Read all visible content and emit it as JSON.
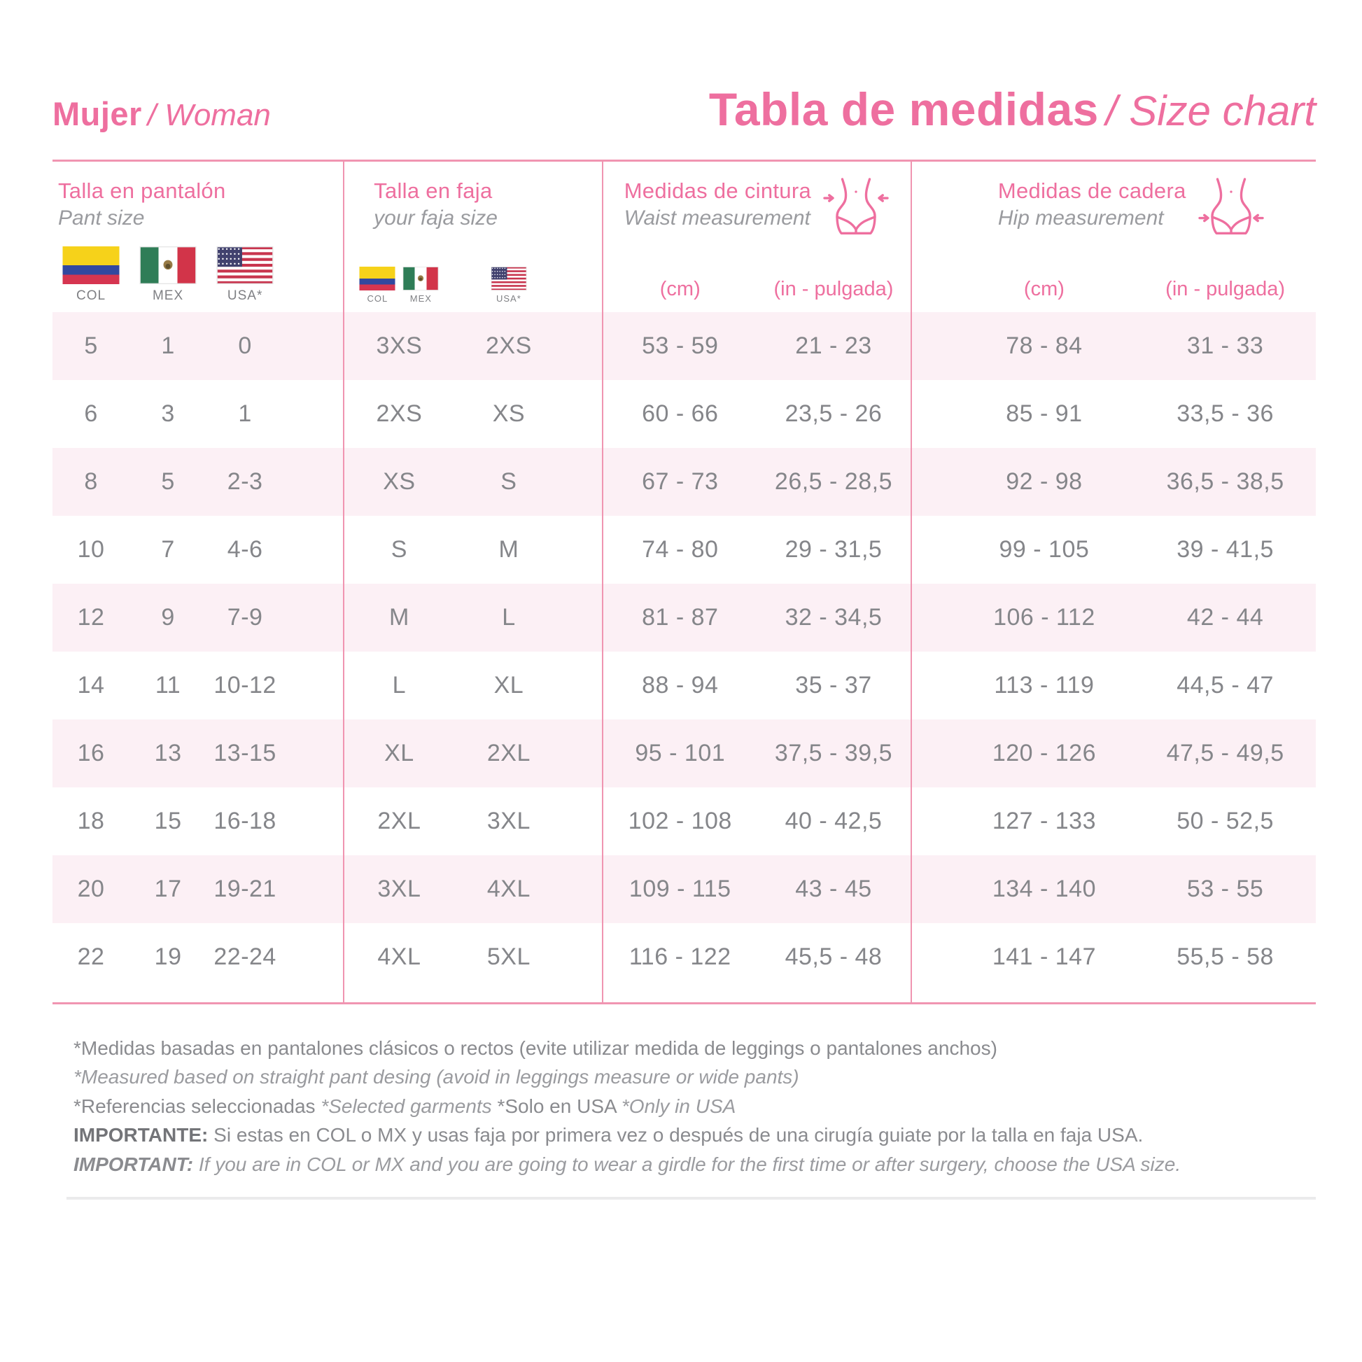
{
  "header": {
    "brand_bold": "Mujer",
    "brand_italic": "/ Woman",
    "title_bold": "Tabla de medidas",
    "title_italic": "/ Size chart"
  },
  "groups": {
    "pant": {
      "title": "Talla en pantalón",
      "subtitle": "Pant size",
      "flags": [
        {
          "country": "colombia",
          "label": "COL"
        },
        {
          "country": "mexico",
          "label": "MEX"
        },
        {
          "country": "usa",
          "label": "USA*"
        }
      ]
    },
    "faja": {
      "title": "Talla en faja",
      "subtitle": "your faja size",
      "flag_cells": [
        [
          {
            "country": "colombia",
            "label": "COL"
          },
          {
            "country": "mexico",
            "label": "MEX"
          }
        ],
        [
          {
            "country": "usa",
            "label": "USA*"
          }
        ]
      ]
    },
    "waist": {
      "title": "Medidas de cintura",
      "subtitle": "Waist measurement",
      "icon": "waist-body-icon",
      "units": [
        "(cm)",
        "(in - pulgada)"
      ]
    },
    "hip": {
      "title": "Medidas de cadera",
      "subtitle": "Hip measurement",
      "icon": "hip-body-icon",
      "units": [
        "(cm)",
        "(in - pulgada)"
      ]
    }
  },
  "rows": [
    {
      "pant": [
        "5",
        "1",
        "0"
      ],
      "faja": [
        "3XS",
        "2XS"
      ],
      "waist": [
        "53 - 59",
        "21 - 23"
      ],
      "hip": [
        "78 - 84",
        "31 - 33"
      ]
    },
    {
      "pant": [
        "6",
        "3",
        "1"
      ],
      "faja": [
        "2XS",
        "XS"
      ],
      "waist": [
        "60 - 66",
        "23,5 - 26"
      ],
      "hip": [
        "85 - 91",
        "33,5 - 36"
      ]
    },
    {
      "pant": [
        "8",
        "5",
        "2-3"
      ],
      "faja": [
        "XS",
        "S"
      ],
      "waist": [
        "67 - 73",
        "26,5 - 28,5"
      ],
      "hip": [
        "92 - 98",
        "36,5 - 38,5"
      ]
    },
    {
      "pant": [
        "10",
        "7",
        "4-6"
      ],
      "faja": [
        "S",
        "M"
      ],
      "waist": [
        "74 - 80",
        "29 - 31,5"
      ],
      "hip": [
        "99 - 105",
        "39 - 41,5"
      ]
    },
    {
      "pant": [
        "12",
        "9",
        "7-9"
      ],
      "faja": [
        "M",
        "L"
      ],
      "waist": [
        "81 - 87",
        "32 - 34,5"
      ],
      "hip": [
        "106 - 112",
        "42 - 44"
      ]
    },
    {
      "pant": [
        "14",
        "11",
        "10-12"
      ],
      "faja": [
        "L",
        "XL"
      ],
      "waist": [
        "88 - 94",
        "35 - 37"
      ],
      "hip": [
        "113 - 119",
        "44,5 - 47"
      ]
    },
    {
      "pant": [
        "16",
        "13",
        "13-15"
      ],
      "faja": [
        "XL",
        "2XL"
      ],
      "waist": [
        "95 - 101",
        "37,5 - 39,5"
      ],
      "hip": [
        "120 - 126",
        "47,5 - 49,5"
      ]
    },
    {
      "pant": [
        "18",
        "15",
        "16-18"
      ],
      "faja": [
        "2XL",
        "3XL"
      ],
      "waist": [
        "102 - 108",
        "40 - 42,5"
      ],
      "hip": [
        "127 - 133",
        "50 - 52,5"
      ]
    },
    {
      "pant": [
        "20",
        "17",
        "19-21"
      ],
      "faja": [
        "3XL",
        "4XL"
      ],
      "waist": [
        "109 - 115",
        "43 - 45"
      ],
      "hip": [
        "134 - 140",
        "53 - 55"
      ]
    },
    {
      "pant": [
        "22",
        "19",
        "22-24"
      ],
      "faja": [
        "4XL",
        "5XL"
      ],
      "waist": [
        "116 - 122",
        "45,5 - 48"
      ],
      "hip": [
        "141 - 147",
        "55,5 - 58"
      ]
    }
  ],
  "notes": [
    {
      "segments": [
        {
          "t": "*Medidas basadas en pantalones clásicos o rectos (evite utilizar medida de leggings o pantalones anchos)",
          "s": "r"
        }
      ]
    },
    {
      "segments": [
        {
          "t": "*Measured based on straight pant desing (avoid in leggings measure or wide pants)",
          "s": "i"
        }
      ]
    },
    {
      "segments": [
        {
          "t": "*Referencias seleccionadas ",
          "s": "r"
        },
        {
          "t": "*Selected garments ",
          "s": "i"
        },
        {
          "t": "*Solo en USA ",
          "s": "r"
        },
        {
          "t": "*Only in USA",
          "s": "i"
        }
      ]
    },
    {
      "segments": [
        {
          "t": "IMPORTANTE: ",
          "s": "b"
        },
        {
          "t": "Si estas en COL o MX y usas faja por primera vez o después de una cirugía guiate por la talla en faja USA.",
          "s": "r"
        }
      ]
    },
    {
      "segments": [
        {
          "t": "IMPORTANT: ",
          "s": "bi"
        },
        {
          "t": "If you are in COL or MX and you are going to wear a girdle for the first time or after surgery, choose the USA size.",
          "s": "i"
        }
      ]
    }
  ],
  "colors": {
    "accent_pink": "#ee6f9f",
    "line_pink": "#f095b1",
    "row_pink": "#fcf0f5",
    "value_gray": "#85868a",
    "subtitle_gray": "#9a9b9f",
    "note_gray": "#8a8b8f",
    "note_strong": "#737478",
    "rule_gray": "#ebebec",
    "flag_colombia_yellow": "#f6d21a",
    "flag_colombia_blue": "#32489f",
    "flag_colombia_red": "#d63550",
    "flag_mexico_green": "#2f7d57",
    "flag_mexico_red": "#d23449",
    "flag_usa_red": "#c8354e",
    "flag_usa_blue": "#41416e"
  }
}
